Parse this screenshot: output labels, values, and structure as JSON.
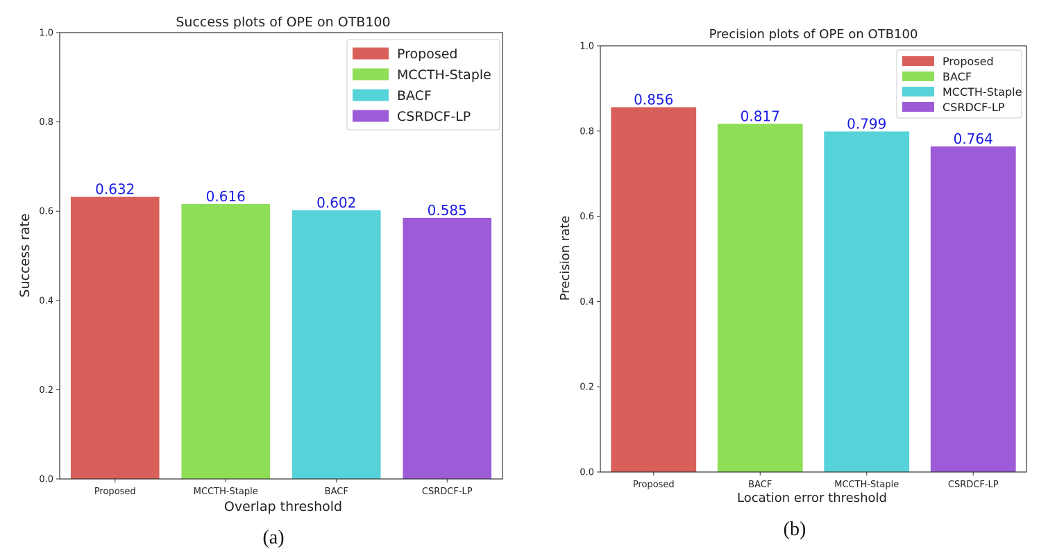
{
  "chart_data": [
    {
      "id": "a",
      "type": "bar",
      "title": "Success plots of OPE on OTB100",
      "xlabel": "Overlap threshold",
      "ylabel": "Success rate",
      "caption": "(a)",
      "ylim": [
        0,
        1.0
      ],
      "yticks": [
        "0.0",
        "0.2",
        "0.4",
        "0.6",
        "0.8",
        "1.0"
      ],
      "categories": [
        "Proposed",
        "MCCTH-Staple",
        "BACF",
        "CSRDCF-LP"
      ],
      "values": [
        0.632,
        0.616,
        0.602,
        0.585
      ],
      "value_labels": [
        "0.632",
        "0.616",
        "0.602",
        "0.585"
      ],
      "colors": [
        "#d9605a",
        "#8fde57",
        "#56d3d8",
        "#9d5bd8"
      ],
      "legend": {
        "position": "top-right",
        "entries": [
          {
            "label": "Proposed",
            "color": "#d9605a"
          },
          {
            "label": "MCCTH-Staple",
            "color": "#8fde57"
          },
          {
            "label": "BACF",
            "color": "#56d3d8"
          },
          {
            "label": "CSRDCF-LP",
            "color": "#9d5bd8"
          }
        ]
      }
    },
    {
      "id": "b",
      "type": "bar",
      "title": "Precision plots of OPE on OTB100",
      "xlabel": "Location error threshold",
      "ylabel": "Precision rate",
      "caption": "(b)",
      "ylim": [
        0,
        1.0
      ],
      "yticks": [
        "0.0",
        "0.2",
        "0.4",
        "0.6",
        "0.8",
        "1.0"
      ],
      "categories": [
        "Proposed",
        "BACF",
        "MCCTH-Staple",
        "CSRDCF-LP"
      ],
      "values": [
        0.856,
        0.817,
        0.799,
        0.764
      ],
      "value_labels": [
        "0.856",
        "0.817",
        "0.799",
        "0.764"
      ],
      "colors": [
        "#d9605a",
        "#8fde57",
        "#56d3d8",
        "#9d5bd8"
      ],
      "legend": {
        "position": "top-right",
        "entries": [
          {
            "label": "Proposed",
            "color": "#d9605a"
          },
          {
            "label": "BACF",
            "color": "#8fde57"
          },
          {
            "label": "MCCTH-Staple",
            "color": "#56d3d8"
          },
          {
            "label": "CSRDCF-LP",
            "color": "#9d5bd8"
          }
        ]
      }
    }
  ],
  "style": {
    "value_label_color": "#1a1ae6",
    "axis_color": "#333333",
    "text_color": "#222222"
  }
}
